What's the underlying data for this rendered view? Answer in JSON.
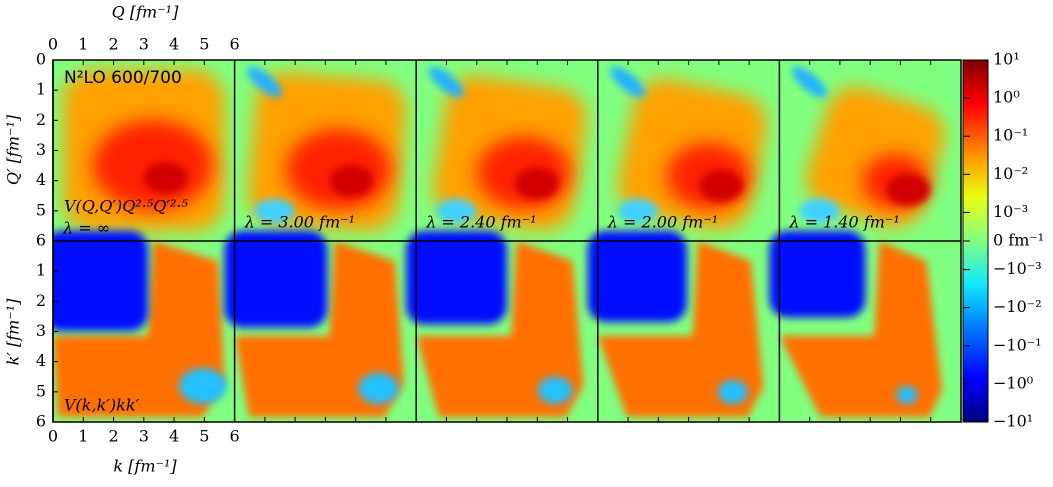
{
  "figure": {
    "xlim": [
      0,
      6
    ],
    "ylim": [
      0,
      6
    ],
    "top_axis": {
      "label": "Q [fm⁻¹]",
      "ticks": [
        0,
        1,
        2,
        3,
        4,
        5,
        6
      ]
    },
    "bottom_axis": {
      "label": "k [fm⁻¹]",
      "ticks": [
        0,
        1,
        2,
        3,
        4,
        5,
        6
      ]
    },
    "left_top_axis": {
      "label": "Q′ [fm⁻¹]",
      "ticks": [
        0,
        1,
        2,
        3,
        4,
        5,
        6
      ]
    },
    "left_bottom_axis": {
      "label": "k′ [fm⁻¹]",
      "ticks": [
        1,
        2,
        3,
        4,
        5,
        6
      ]
    },
    "panel_title": "N²LO 600/700",
    "top_row_formula": "V(Q,Q′)Q²·⁵Q′²·⁵",
    "bottom_row_formula": "V(k,k′)kk′",
    "lambdas": [
      "λ = ∞",
      "λ = 3.00 fm⁻¹",
      "λ = 2.40 fm⁻¹",
      "λ = 2.00 fm⁻¹",
      "λ = 1.40 fm⁻¹"
    ],
    "colorbar": {
      "scale": "symlog",
      "linthresh": 0.001,
      "lim": [
        -10,
        10
      ],
      "ticks": [
        {
          "value": 10,
          "label": "10¹"
        },
        {
          "value": 1,
          "label": "10⁰"
        },
        {
          "value": 0.1,
          "label": "10⁻¹"
        },
        {
          "value": 0.01,
          "label": "10⁻²"
        },
        {
          "value": 0.001,
          "label": "10⁻³"
        },
        {
          "value": 0,
          "label": "0 fm⁻¹"
        },
        {
          "value": -0.001,
          "label": "−10⁻³"
        },
        {
          "value": -0.01,
          "label": "−10⁻²"
        },
        {
          "value": -0.1,
          "label": "−10⁻¹"
        },
        {
          "value": -1,
          "label": "−10⁰"
        },
        {
          "value": -10,
          "label": "−10¹"
        }
      ]
    }
  }
}
